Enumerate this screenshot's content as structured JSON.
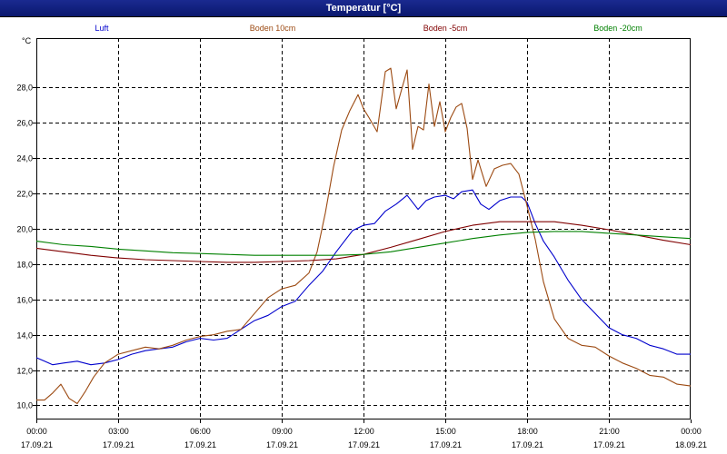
{
  "window": {
    "title": "Temperatur [°C]"
  },
  "chart_data": {
    "type": "line",
    "title": "Temperatur [°C]",
    "ylabel": "°C",
    "xlabel": "",
    "ylim": [
      9.2,
      30.8
    ],
    "y_ticks": [
      10,
      12,
      14,
      16,
      18,
      20,
      22,
      24,
      26,
      28
    ],
    "y_tick_labels": [
      "10,0",
      "12,0",
      "14,0",
      "16,0",
      "18,0",
      "20,0",
      "22,0",
      "24,0",
      "26,0",
      "28,0"
    ],
    "x_range_hours": [
      0,
      24
    ],
    "x_ticks": [
      {
        "h": 0,
        "time": "00:00",
        "date": "17.09.21"
      },
      {
        "h": 3,
        "time": "03:00",
        "date": "17.09.21"
      },
      {
        "h": 6,
        "time": "06:00",
        "date": "17.09.21"
      },
      {
        "h": 9,
        "time": "09:00",
        "date": "17.09.21"
      },
      {
        "h": 12,
        "time": "12:00",
        "date": "17.09.21"
      },
      {
        "h": 15,
        "time": "15:00",
        "date": "17.09.21"
      },
      {
        "h": 18,
        "time": "18:00",
        "date": "17.09.21"
      },
      {
        "h": 21,
        "time": "21:00",
        "date": "17.09.21"
      },
      {
        "h": 24,
        "time": "00:00",
        "date": "18.09.21"
      }
    ],
    "grid": true,
    "legend_position": "top",
    "series": [
      {
        "name": "Luft",
        "color": "#0000cc",
        "x": [
          0,
          0.3,
          0.6,
          1,
          1.5,
          2,
          2.5,
          3,
          3.5,
          4,
          4.5,
          5,
          5.5,
          6,
          6.5,
          7,
          7.5,
          8,
          8.5,
          9,
          9.5,
          10,
          10.5,
          11,
          11.3,
          11.6,
          12,
          12.4,
          12.8,
          13.2,
          13.6,
          14,
          14.3,
          14.6,
          15,
          15.3,
          15.6,
          16,
          16.3,
          16.6,
          17,
          17.4,
          17.8,
          18,
          18.3,
          18.6,
          19,
          19.5,
          20,
          20.5,
          21,
          21.5,
          22,
          22.5,
          23,
          23.5,
          24
        ],
        "y": [
          12.7,
          12.5,
          12.3,
          12.4,
          12.5,
          12.3,
          12.4,
          12.6,
          12.9,
          13.1,
          13.2,
          13.3,
          13.6,
          13.8,
          13.7,
          13.8,
          14.3,
          14.8,
          15.1,
          15.6,
          15.9,
          16.8,
          17.6,
          18.7,
          19.3,
          19.9,
          20.2,
          20.3,
          21.0,
          21.4,
          21.9,
          21.1,
          21.6,
          21.8,
          21.9,
          21.7,
          22.1,
          22.2,
          21.4,
          21.1,
          21.6,
          21.8,
          21.8,
          21.5,
          20.3,
          19.3,
          18.4,
          17.1,
          16.0,
          15.2,
          14.4,
          14.0,
          13.8,
          13.4,
          13.2,
          12.9,
          12.9
        ]
      },
      {
        "name": "Boden 10cm",
        "color": "#9c4a12",
        "x": [
          0,
          0.3,
          0.6,
          0.9,
          1.2,
          1.5,
          1.8,
          2.1,
          2.5,
          3,
          3.5,
          4,
          4.5,
          5,
          5.5,
          6,
          6.5,
          7,
          7.5,
          8,
          8.5,
          9,
          9.5,
          10,
          10.3,
          10.6,
          10.9,
          11.2,
          11.5,
          11.8,
          12,
          12.2,
          12.5,
          12.8,
          13,
          13.2,
          13.4,
          13.6,
          13.8,
          14,
          14.2,
          14.4,
          14.6,
          14.8,
          15,
          15.2,
          15.4,
          15.6,
          15.8,
          16,
          16.2,
          16.5,
          16.8,
          17.1,
          17.4,
          17.7,
          18,
          18.3,
          18.6,
          19,
          19.5,
          20,
          20.5,
          21,
          21.5,
          22,
          22.5,
          23,
          23.5,
          24
        ],
        "y": [
          10.3,
          10.3,
          10.7,
          11.2,
          10.4,
          10.1,
          10.8,
          11.6,
          12.4,
          12.9,
          13.1,
          13.3,
          13.2,
          13.4,
          13.7,
          13.9,
          14.0,
          14.2,
          14.3,
          15.2,
          16.1,
          16.6,
          16.8,
          17.5,
          18.7,
          20.9,
          23.5,
          25.6,
          26.7,
          27.6,
          26.8,
          26.3,
          25.5,
          28.9,
          29.1,
          26.8,
          27.9,
          29.0,
          24.5,
          25.8,
          25.6,
          28.2,
          25.8,
          27.2,
          25.5,
          26.3,
          26.9,
          27.1,
          25.7,
          22.8,
          23.9,
          22.4,
          23.4,
          23.6,
          23.7,
          23.1,
          21.3,
          19.4,
          17.0,
          14.9,
          13.8,
          13.4,
          13.3,
          12.8,
          12.4,
          12.1,
          11.7,
          11.6,
          11.2,
          11.1
        ]
      },
      {
        "name": "Boden -5cm",
        "color": "#800000",
        "x": [
          0,
          1,
          2,
          3,
          4,
          5,
          6,
          7,
          8,
          9,
          10,
          11,
          12,
          13,
          14,
          15,
          16,
          17,
          18,
          19,
          20,
          21,
          22,
          23,
          24
        ],
        "y": [
          18.9,
          18.7,
          18.5,
          18.35,
          18.25,
          18.2,
          18.15,
          18.1,
          18.1,
          18.15,
          18.2,
          18.3,
          18.55,
          18.95,
          19.4,
          19.85,
          20.2,
          20.4,
          20.4,
          20.4,
          20.2,
          19.95,
          19.65,
          19.35,
          19.1
        ]
      },
      {
        "name": "Boden -20cm",
        "color": "#008000",
        "x": [
          0,
          1,
          2,
          3,
          4,
          5,
          6,
          7,
          8,
          9,
          10,
          11,
          12,
          13,
          14,
          15,
          16,
          17,
          18,
          19,
          20,
          21,
          22,
          23,
          24
        ],
        "y": [
          19.3,
          19.1,
          19.0,
          18.85,
          18.75,
          18.65,
          18.6,
          18.55,
          18.5,
          18.5,
          18.5,
          18.5,
          18.55,
          18.7,
          18.95,
          19.2,
          19.45,
          19.65,
          19.8,
          19.85,
          19.85,
          19.75,
          19.65,
          19.55,
          19.45
        ]
      }
    ]
  }
}
